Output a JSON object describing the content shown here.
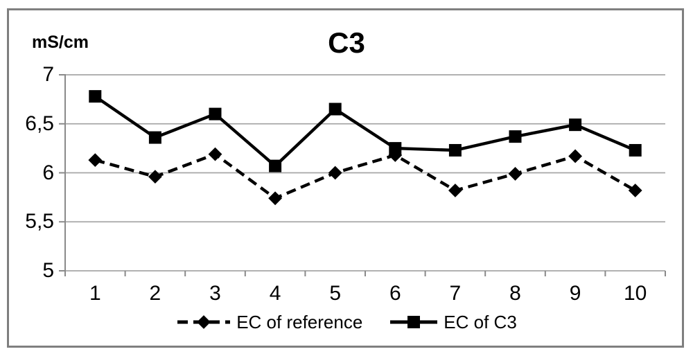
{
  "chart_data": {
    "type": "line",
    "title": "C3",
    "unit_label": "mS/cm",
    "x": [
      1,
      2,
      3,
      4,
      5,
      6,
      7,
      8,
      9,
      10
    ],
    "x_tick_labels": [
      "1",
      "2",
      "3",
      "4",
      "5",
      "6",
      "7",
      "8",
      "9",
      "10"
    ],
    "y_ticks": [
      7,
      6.5,
      6,
      5.5,
      5
    ],
    "y_tick_labels": [
      "7",
      "6,5",
      "6",
      "5,5",
      "5"
    ],
    "ylim": [
      5,
      7
    ],
    "grid": "horizontal",
    "legend_position": "bottom",
    "colors": {
      "series": "#000000",
      "gridline": "#a6a6a6",
      "axis": "#898989",
      "frame": "#7f7f7f"
    },
    "series": [
      {
        "name": "EC of reference",
        "style": "dashed",
        "marker": "diamond",
        "color": "#000000",
        "values": [
          6.13,
          5.96,
          6.19,
          5.74,
          6.0,
          6.18,
          5.82,
          5.99,
          6.17,
          5.82
        ]
      },
      {
        "name": "EC of C3",
        "style": "solid",
        "marker": "square",
        "color": "#000000",
        "values": [
          6.78,
          6.36,
          6.6,
          6.07,
          6.65,
          6.25,
          6.23,
          6.37,
          6.49,
          6.23
        ]
      }
    ]
  }
}
